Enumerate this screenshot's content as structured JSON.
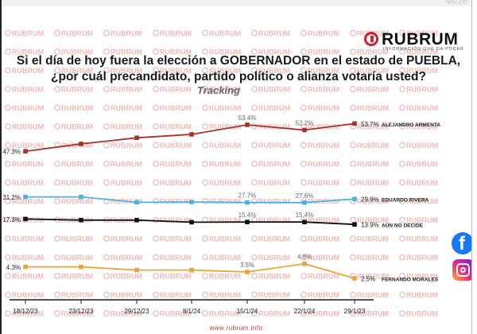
{
  "corner_text": "46/26",
  "brand": {
    "name": "RUBRUM",
    "tagline": "INFORMACIÓN QUE DA PODER",
    "watermark": "RUBRUM",
    "url": "www.rubrum.info",
    "accent_color": "#d0202a"
  },
  "social": [
    {
      "name": "facebook",
      "icon": "facebook-icon",
      "color": "#1877f2"
    },
    {
      "name": "instagram",
      "icon": "instagram-icon",
      "color": "#e1306c"
    }
  ],
  "chart_data": {
    "type": "line",
    "title": "Si el día de hoy fuera la elección a GOBERNADOR en el estado de PUEBLA,\n¿por cuál precandidato, partido político o alianza votaría usted?",
    "subtitle": "Tracking",
    "xlabel": "",
    "ylabel": "",
    "grid": false,
    "legend": "right-of-last-point",
    "x": [
      "18/12/23",
      "23/12/23",
      "29/12/23",
      "8/1/24",
      "15/1/24",
      "22/1/24",
      "29/1/23"
    ],
    "series": [
      {
        "name": "ALEJANDRO ARMENTA",
        "color": "#a83228",
        "values": [
          47.3,
          49.0,
          50.4,
          51.2,
          53.4,
          52.2,
          53.7
        ],
        "labels": [
          "47.3%",
          null,
          null,
          null,
          "53.4%",
          "52.2%",
          "53.7%"
        ]
      },
      {
        "name": "EDUARDO RIVERA",
        "color": "#4eb0e5",
        "values": [
          31.2,
          31.2,
          27.8,
          28.0,
          27.7,
          27.6,
          29.9
        ],
        "labels": [
          "31.2%",
          null,
          null,
          null,
          "27.7%",
          "27.6%",
          "29.9%"
        ]
      },
      {
        "name": "AÚN NO DECIDE",
        "color": "#111111",
        "values": [
          17.3,
          16.6,
          16.6,
          15.3,
          15.4,
          15.4,
          13.9
        ],
        "labels": [
          "17.3%",
          null,
          null,
          null,
          "15.4%",
          "15.4%",
          "13.9%"
        ]
      },
      {
        "name": "FERNANDO MORALES",
        "color": "#eaa53a",
        "values": [
          4.3,
          4.3,
          3.8,
          3.8,
          3.5,
          4.8,
          2.5
        ],
        "labels": [
          "4.3%",
          null,
          null,
          null,
          "3.5%",
          "4.8%",
          "2.5%"
        ]
      }
    ]
  }
}
